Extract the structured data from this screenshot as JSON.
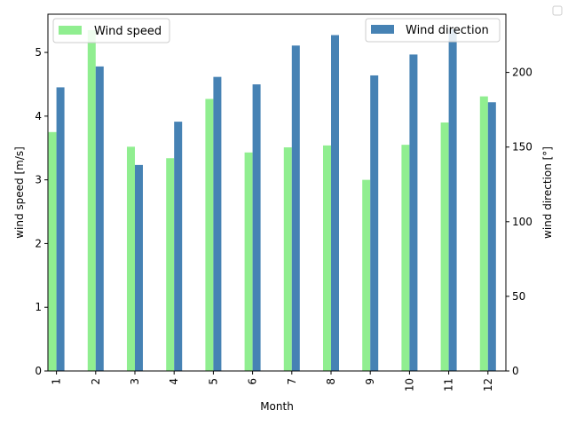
{
  "chart_data": {
    "type": "bar",
    "categories": [
      "1",
      "2",
      "3",
      "4",
      "5",
      "6",
      "7",
      "8",
      "9",
      "10",
      "11",
      "12"
    ],
    "xlabel": "Month",
    "series": [
      {
        "name": "Wind speed",
        "axis": "left",
        "color": "#90ee90",
        "values": [
          3.75,
          5.35,
          3.52,
          3.34,
          4.27,
          3.43,
          3.51,
          3.54,
          3.0,
          3.55,
          3.9,
          4.31
        ]
      },
      {
        "name": "Wind direction",
        "axis": "right",
        "color": "#4682b4",
        "values": [
          190,
          204,
          138,
          167,
          197,
          192,
          218,
          225,
          198,
          212,
          229,
          180
        ]
      }
    ],
    "ylabel_left": "wind speed [m/s]",
    "ylim_left": [
      0,
      5.6
    ],
    "yticks_left": [
      "0",
      "1",
      "2",
      "3",
      "4",
      "5"
    ],
    "ylabel_right": "wind direction [°]",
    "ylim_right": [
      0,
      239
    ],
    "yticks_right": [
      "0",
      "50",
      "100",
      "150",
      "200"
    ],
    "legend_left_position": "upper-left",
    "legend_right_position": "upper-right",
    "grid": false
  }
}
